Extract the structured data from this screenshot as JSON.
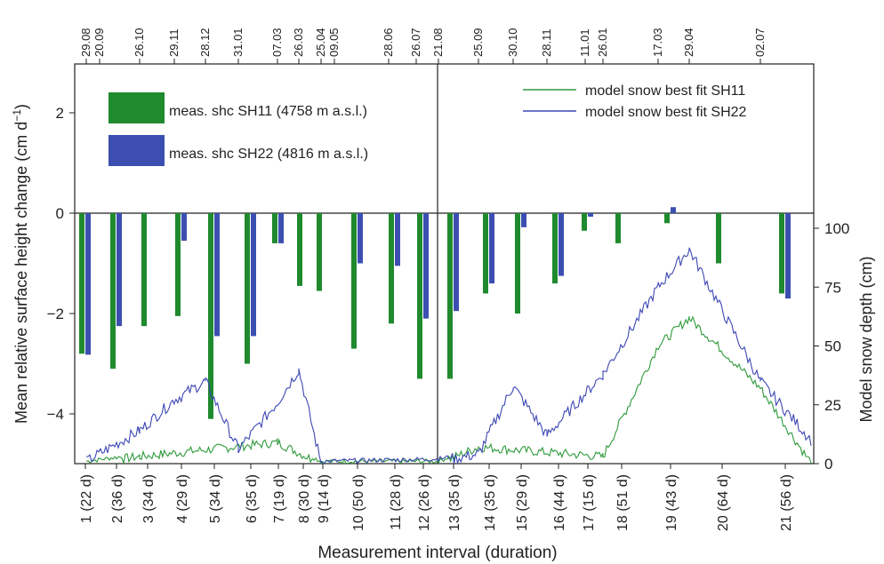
{
  "chart_data": {
    "type": "bar",
    "xlabel": "Measurement interval (duration)",
    "ylabel_left": "Mean relative surface height change (cm d−1)",
    "ylabel_right": "Model snow depth (cm)",
    "ylim_left": [
      -5,
      3
    ],
    "yticks_left": [
      2,
      0,
      -2,
      -4
    ],
    "ytick_labels_left": [
      "2",
      "0",
      "−2",
      "−4"
    ],
    "ylim_right": [
      0,
      100
    ],
    "yticks_right": [
      0,
      25,
      50,
      75,
      100
    ],
    "ytick_labels_right": [
      "0",
      "25",
      "50",
      "75",
      "100"
    ],
    "categories": [
      "1 (22 d)",
      "2 (36 d)",
      "3 (34 d)",
      "4 (29 d)",
      "5 (34 d)",
      "6 (35 d)",
      "7 (19 d)",
      "8 (30 d)",
      "9 (14 d)",
      "10 (50 d)",
      "11 (28 d)",
      "12 (26 d)",
      "13 (35 d)",
      "14 (35 d)",
      "15 (29 d)",
      "16 (44 d)",
      "17 (15 d)",
      "18 (51 d)",
      "19 (43 d)",
      "20 (64 d)",
      "21 (56 d)"
    ],
    "top_date_labels": [
      "29.08",
      "20.09",
      "26.10",
      "29.11",
      "28.12",
      "31.01",
      "07.03",
      "26.03",
      "25.04",
      "09.05",
      "28.06",
      "26.07",
      "21.08",
      "25.09",
      "30.10",
      "28.11",
      "11.01",
      "26.01",
      "17.03",
      "29.04",
      "02.07"
    ],
    "series": [
      {
        "name": "meas. shc SH11 (4758 m a.s.l.)",
        "color": "#1f8a2e",
        "values": [
          -2.8,
          -3.1,
          -2.25,
          -2.05,
          -4.1,
          -3.0,
          -0.6,
          -1.45,
          -1.55,
          -2.7,
          -2.2,
          -3.3,
          -3.3,
          -1.6,
          -2.0,
          -1.4,
          -0.35,
          -0.6,
          -0.2,
          -1.0,
          -1.6
        ]
      },
      {
        "name": "meas. shc SH22 (4816 m a.s.l.)",
        "color": "#3c4fb0",
        "values": [
          -2.82,
          -2.25,
          null,
          -0.55,
          -2.45,
          -2.45,
          -0.6,
          null,
          null,
          -1.0,
          -1.05,
          -2.1,
          -1.95,
          -1.4,
          -0.28,
          -1.25,
          -0.07,
          null,
          0.12,
          null,
          -1.7
        ]
      }
    ],
    "lines": [
      {
        "name": "model snow best fit SH11",
        "color": "#2e9a3a",
        "x": [
          "29.08",
          "26.10",
          "07.03",
          "25.04",
          "21.08",
          "25.09",
          "26.01",
          "17.03",
          "29.04",
          "02.07",
          "26.08"
        ],
        "y": [
          0,
          3,
          9,
          0,
          0,
          7,
          3,
          50,
          62,
          32,
          0
        ]
      },
      {
        "name": "model snow best fit SH22",
        "color": "#3d47b4",
        "x": [
          "29.08",
          "26.10",
          "29.11",
          "28.12",
          "31.01",
          "07.03",
          "26.03",
          "25.04",
          "21.08",
          "25.09",
          "30.10",
          "28.11",
          "26.01",
          "17.03",
          "29.04",
          "02.07",
          "26.08"
        ],
        "y": [
          1,
          14,
          27,
          35,
          6,
          26,
          40,
          0,
          1,
          4,
          33,
          12,
          38,
          75,
          91,
          35,
          10
        ]
      }
    ],
    "legend_left": "top-left",
    "legend_right": "top-right",
    "grid": false
  }
}
